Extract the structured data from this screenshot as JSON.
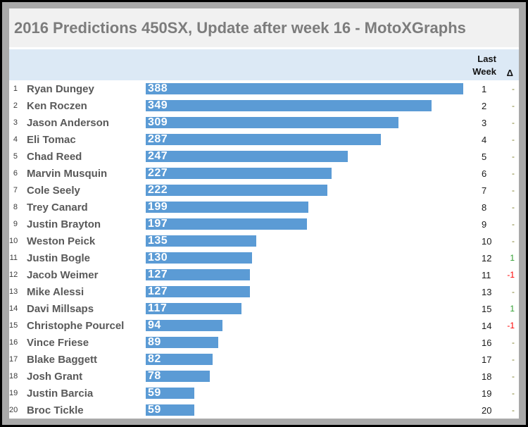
{
  "title": "2016 Predictions 450SX, Update after week 16 - MotoXGraphs",
  "column_headers": {
    "last_week_line1": "Last",
    "last_week_line2": "Week",
    "delta_symbol": "Δ"
  },
  "colors": {
    "bar": "#5b9bd5",
    "header_band": "#dce9f5",
    "title_bg": "#f1f1f1",
    "title_text": "#7c7c7c",
    "name_text": "#595959",
    "delta_positive": "#2e9e2e",
    "delta_negative": "#ff0000",
    "delta_neutral": "#7f7f2e"
  },
  "chart_data": {
    "type": "bar",
    "orientation": "horizontal",
    "title": "2016 Predictions 450SX, Update after week 16 - MotoXGraphs",
    "categories": [
      "Ryan Dungey",
      "Ken Roczen",
      "Jason Anderson",
      "Eli Tomac",
      "Chad Reed",
      "Marvin Musquin",
      "Cole Seely",
      "Trey Canard",
      "Justin Brayton",
      "Weston Peick",
      "Justin Bogle",
      "Jacob Weimer",
      "Mike Alessi",
      "Davi Millsaps",
      "Christophe Pourcel",
      "Vince Friese",
      "Blake Baggett",
      "Josh Grant",
      "Justin Barcia",
      "Broc Tickle"
    ],
    "values": [
      388,
      349,
      309,
      287,
      247,
      227,
      222,
      199,
      197,
      135,
      130,
      127,
      127,
      117,
      94,
      89,
      82,
      78,
      59,
      59
    ],
    "ranks": [
      1,
      2,
      3,
      4,
      5,
      6,
      7,
      8,
      9,
      10,
      11,
      12,
      13,
      14,
      15,
      16,
      17,
      18,
      19,
      20
    ],
    "last_week": [
      1,
      2,
      3,
      4,
      5,
      6,
      7,
      8,
      9,
      10,
      12,
      11,
      13,
      15,
      14,
      16,
      17,
      18,
      19,
      20
    ],
    "delta": [
      "-",
      "-",
      "-",
      "-",
      "-",
      "-",
      "-",
      "-",
      "-",
      "-",
      "1",
      "-1",
      "-",
      "1",
      "-1",
      "-",
      "-",
      "-",
      "-",
      "-"
    ],
    "xlim": [
      0,
      450
    ],
    "grid": false,
    "legend": false,
    "value_labels": "inside-left"
  }
}
